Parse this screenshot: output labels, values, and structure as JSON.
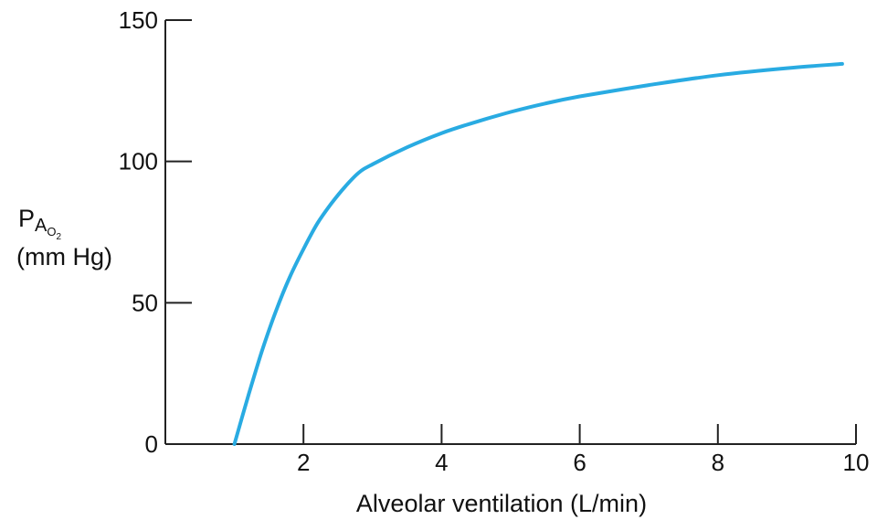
{
  "chart_data": {
    "type": "line",
    "title": "",
    "xlabel": "Alveolar ventilation (L/min)",
    "ylabel": {
      "main": "P",
      "sub1": "A",
      "sub2": "O",
      "sub3": "2",
      "unit": "(mm Hg)"
    },
    "xlim": [
      0,
      10
    ],
    "ylim": [
      0,
      150
    ],
    "x_ticks": [
      2,
      4,
      6,
      8,
      10
    ],
    "x_tick_labels": [
      "2",
      "4",
      "6",
      "8",
      "10"
    ],
    "y_ticks": [
      0,
      50,
      100,
      150
    ],
    "y_tick_labels": [
      "0",
      "50",
      "100",
      "150"
    ],
    "grid": false,
    "series": [
      {
        "color": "#29abe2",
        "x": [
          1.0,
          1.2,
          1.4,
          1.6,
          1.8,
          2.0,
          2.2,
          2.4,
          2.6,
          2.8,
          3.0,
          3.5,
          4.0,
          4.5,
          5.0,
          5.5,
          6.0,
          7.0,
          8.0,
          9.0,
          9.8
        ],
        "y": [
          0,
          17,
          33,
          47,
          59,
          69,
          78,
          85,
          91,
          96,
          99,
          105,
          110,
          114,
          117.5,
          120.5,
          123,
          127,
          130.5,
          133,
          134.5
        ]
      }
    ]
  }
}
